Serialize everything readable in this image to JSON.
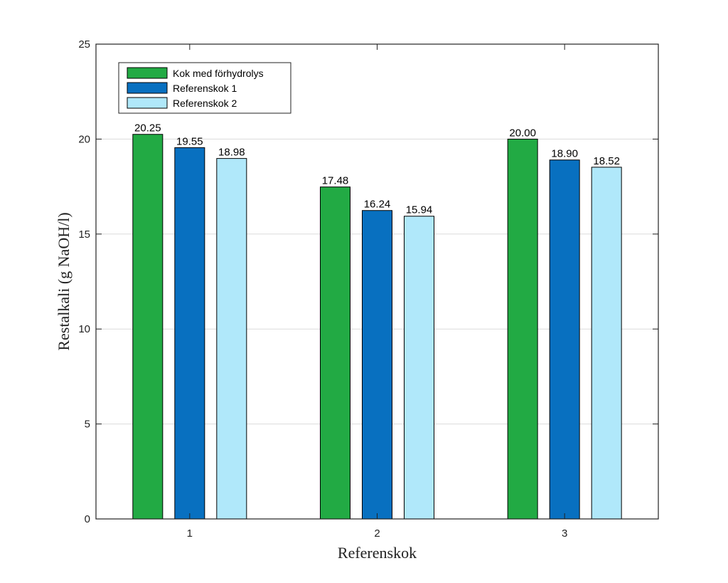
{
  "chart_data": {
    "type": "bar",
    "title": "",
    "xlabel": "Referenskok",
    "ylabel": "Restalkali (g NaOH/l)",
    "categories": [
      "1",
      "2",
      "3"
    ],
    "series": [
      {
        "name": "Kok med förhydrolys",
        "color": "#22AA44",
        "values": [
          20.25,
          17.48,
          20.0
        ],
        "labels": [
          "20.25",
          "17.48",
          "20.00"
        ]
      },
      {
        "name": "Referenskok 1",
        "color": "#0870C0",
        "values": [
          19.55,
          16.24,
          18.9
        ],
        "labels": [
          "19.55",
          "16.24",
          "18.90"
        ]
      },
      {
        "name": "Referenskok 2",
        "color": "#B0E8FA",
        "values": [
          18.98,
          15.94,
          18.52
        ],
        "labels": [
          "18.98",
          "15.94",
          "18.52"
        ]
      }
    ],
    "ylim": [
      0,
      25
    ],
    "yticks": [
      0,
      5,
      10,
      15,
      20,
      25
    ],
    "grid": true,
    "legend": "top-left"
  }
}
